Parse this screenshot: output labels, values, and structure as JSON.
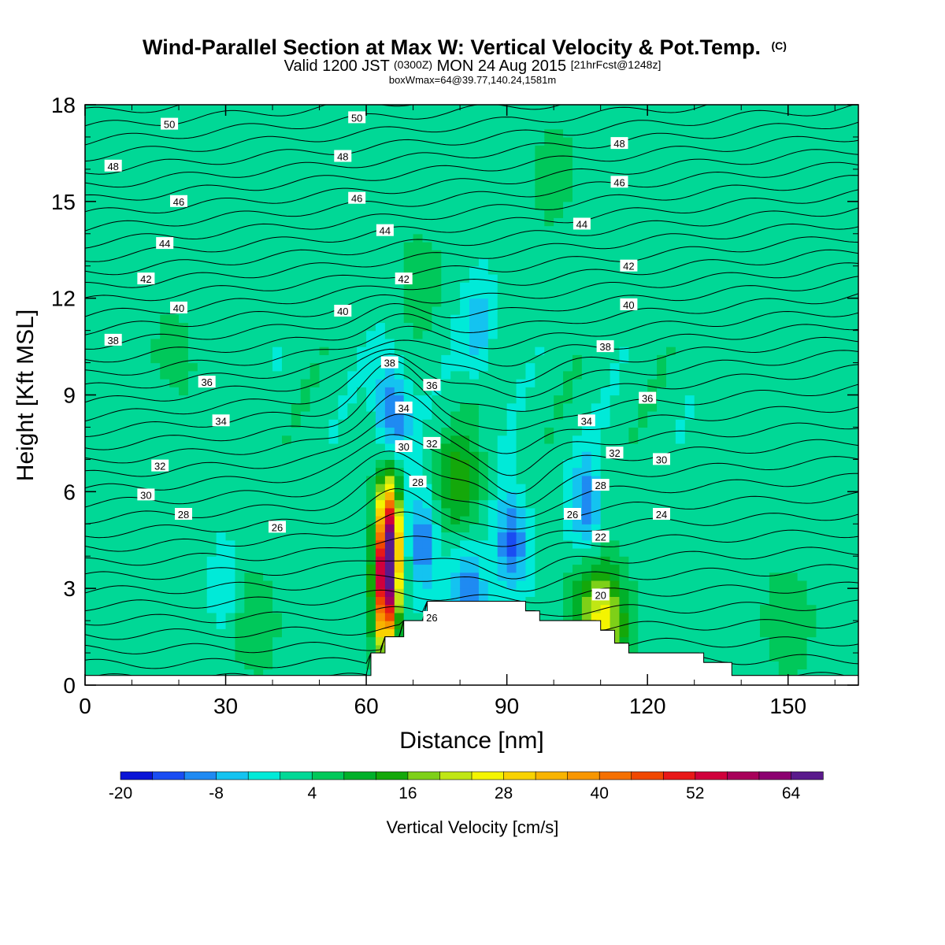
{
  "figure": {
    "title_main": "Wind-Parallel Section at Max W: Vertical Velocity & Pot.Temp.",
    "title_mark": "(C)",
    "subtitle_part1": "Valid 1200 JST",
    "subtitle_part2": "(0300Z)",
    "subtitle_part3": "MON 24 Aug 2015",
    "subtitle_part4": "[21hrFcst@1248z]",
    "subtitle2": "boxWmax=64@39.77,140.24,1581m"
  },
  "chart_data": {
    "type": "heatmap",
    "xlabel": "Distance [nm]",
    "ylabel": "Height [Kft MSL]",
    "xlim": [
      0,
      165
    ],
    "ylim": [
      0,
      18
    ],
    "x_ticks": [
      0,
      30,
      60,
      90,
      120,
      150
    ],
    "y_ticks": [
      0,
      3,
      6,
      9,
      12,
      15,
      18
    ],
    "colorbar": {
      "title": "Vertical Velocity [cm/s]",
      "levels": [
        -20,
        -16,
        -12,
        -8,
        -4,
        0,
        4,
        8,
        12,
        16,
        20,
        24,
        28,
        32,
        36,
        40,
        44,
        48,
        52,
        56,
        60,
        64,
        68
      ],
      "tick_labels": [
        "-20",
        "-8",
        "4",
        "16",
        "28",
        "40",
        "52",
        "64"
      ],
      "tick_values": [
        -20,
        -8,
        4,
        16,
        28,
        40,
        52,
        64
      ],
      "colors": [
        "#0a14d6",
        "#1a4df2",
        "#1f8af2",
        "#14c3f0",
        "#00ead8",
        "#00d896",
        "#00c85a",
        "#00b02a",
        "#14a80a",
        "#7ed018",
        "#c0e614",
        "#f4f400",
        "#f8d200",
        "#f8b400",
        "#f89600",
        "#f57000",
        "#f04800",
        "#e81818",
        "#d0003c",
        "#a8005a",
        "#8c0070",
        "#5a1a8c"
      ]
    },
    "background_velocity": 2,
    "velocity_features": [
      {
        "kind": "updraft",
        "x": 65,
        "y": 4.5,
        "peak": 48
      },
      {
        "kind": "updraft",
        "x": 64,
        "y": 3,
        "peak": 44
      },
      {
        "kind": "updraft",
        "x": 80,
        "y": 6.2,
        "peak": 12
      },
      {
        "kind": "updraft",
        "x": 111,
        "y": 1.8,
        "peak": 16
      },
      {
        "kind": "updraft",
        "x": 109,
        "y": 2.5,
        "peak": 10
      },
      {
        "kind": "updraft",
        "x": 70,
        "y": 13,
        "peak": 4
      },
      {
        "kind": "updraft",
        "x": 100,
        "y": 16,
        "peak": 4
      },
      {
        "kind": "updraft",
        "x": 20,
        "y": 10,
        "peak": 4
      },
      {
        "kind": "updraft",
        "x": 150,
        "y": 2,
        "peak": 6
      },
      {
        "kind": "updraft",
        "x": 36,
        "y": 2,
        "peak": 6
      },
      {
        "kind": "downdraft",
        "x": 65.5,
        "y": 8.5,
        "peak": -16
      },
      {
        "kind": "downdraft",
        "x": 72,
        "y": 4.5,
        "peak": -14
      },
      {
        "kind": "downdraft",
        "x": 91,
        "y": 4.5,
        "peak": -16
      },
      {
        "kind": "downdraft",
        "x": 82,
        "y": 2.8,
        "peak": -14
      },
      {
        "kind": "downdraft",
        "x": 107,
        "y": 5.5,
        "peak": -12
      },
      {
        "kind": "downdraft",
        "x": 84,
        "y": 11,
        "peak": -8
      },
      {
        "kind": "downdraft",
        "x": 30,
        "y": 3,
        "peak": -6
      }
    ],
    "terrain": [
      [
        0,
        0.3
      ],
      [
        60,
        0.3
      ],
      [
        61,
        1
      ],
      [
        64,
        1
      ],
      [
        64,
        1.5
      ],
      [
        68,
        1.5
      ],
      [
        68,
        2
      ],
      [
        73,
        2
      ],
      [
        73,
        2.6
      ],
      [
        94,
        2.6
      ],
      [
        94,
        2.3
      ],
      [
        97,
        2.3
      ],
      [
        97,
        2
      ],
      [
        110,
        2
      ],
      [
        110,
        1.7
      ],
      [
        113,
        1.7
      ],
      [
        113,
        1.3
      ],
      [
        116,
        1.3
      ],
      [
        116,
        1
      ],
      [
        132,
        1
      ],
      [
        132,
        0.7
      ],
      [
        138,
        0.7
      ],
      [
        138,
        0.3
      ],
      [
        165,
        0.3
      ]
    ],
    "contour_labels": [
      {
        "label": "50",
        "x": 18,
        "y": 17.4
      },
      {
        "label": "50",
        "x": 58,
        "y": 17.6
      },
      {
        "label": "48",
        "x": 6,
        "y": 16.1
      },
      {
        "label": "48",
        "x": 55,
        "y": 16.4
      },
      {
        "label": "48",
        "x": 114,
        "y": 16.8
      },
      {
        "label": "46",
        "x": 20,
        "y": 15.0
      },
      {
        "label": "46",
        "x": 58,
        "y": 15.1
      },
      {
        "label": "46",
        "x": 114,
        "y": 15.6
      },
      {
        "label": "44",
        "x": 17,
        "y": 13.7
      },
      {
        "label": "44",
        "x": 64,
        "y": 14.1
      },
      {
        "label": "44",
        "x": 106,
        "y": 14.3
      },
      {
        "label": "42",
        "x": 13,
        "y": 12.6
      },
      {
        "label": "42",
        "x": 68,
        "y": 12.6
      },
      {
        "label": "42",
        "x": 116,
        "y": 13.0
      },
      {
        "label": "40",
        "x": 20,
        "y": 11.7
      },
      {
        "label": "40",
        "x": 55,
        "y": 11.6
      },
      {
        "label": "40",
        "x": 116,
        "y": 11.8
      },
      {
        "label": "38",
        "x": 6,
        "y": 10.7
      },
      {
        "label": "38",
        "x": 65,
        "y": 10.0
      },
      {
        "label": "38",
        "x": 111,
        "y": 10.5
      },
      {
        "label": "36",
        "x": 26,
        "y": 9.4
      },
      {
        "label": "36",
        "x": 74,
        "y": 9.3
      },
      {
        "label": "36",
        "x": 120,
        "y": 8.9
      },
      {
        "label": "34",
        "x": 29,
        "y": 8.2
      },
      {
        "label": "34",
        "x": 68,
        "y": 8.6
      },
      {
        "label": "34",
        "x": 107,
        "y": 8.2
      },
      {
        "label": "32",
        "x": 16,
        "y": 6.8
      },
      {
        "label": "32",
        "x": 74,
        "y": 7.5
      },
      {
        "label": "32",
        "x": 113,
        "y": 7.2
      },
      {
        "label": "30",
        "x": 13,
        "y": 5.9
      },
      {
        "label": "30",
        "x": 68,
        "y": 7.4
      },
      {
        "label": "30",
        "x": 123,
        "y": 7.0
      },
      {
        "label": "28",
        "x": 21,
        "y": 5.3
      },
      {
        "label": "28",
        "x": 71,
        "y": 6.3
      },
      {
        "label": "28",
        "x": 110,
        "y": 6.2
      },
      {
        "label": "26",
        "x": 41,
        "y": 4.9
      },
      {
        "label": "26",
        "x": 104,
        "y": 5.3
      },
      {
        "label": "26",
        "x": 74,
        "y": 2.1
      },
      {
        "label": "24",
        "x": 123,
        "y": 5.3
      },
      {
        "label": "22",
        "x": 110,
        "y": 4.6
      },
      {
        "label": "20",
        "x": 110,
        "y": 2.8
      }
    ]
  }
}
